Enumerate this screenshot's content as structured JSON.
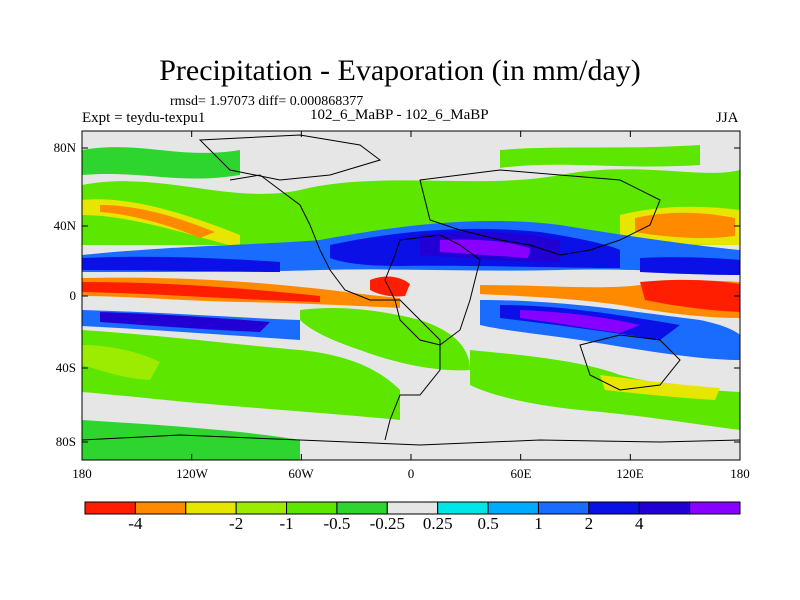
{
  "header": {
    "title": "Precipitation - Evaporation (in mm/day)",
    "stats": "rmsd= 1.97073 diff= 0.000868377",
    "experiment": "Expt = teydu-texpu1",
    "runs": "102_6_MaBP - 102_6_MaBP",
    "season": "JJA"
  },
  "map": {
    "y_ticks": [
      "80N",
      "40N",
      "0",
      "40S",
      "80S"
    ],
    "x_ticks": [
      "180",
      "120W",
      "60W",
      "0",
      "60E",
      "120E",
      "180"
    ]
  },
  "colorbar": {
    "colors": [
      "#ff1f00",
      "#ff8a00",
      "#e6e600",
      "#9bec00",
      "#5ce600",
      "#2fd52f",
      "#e6e6e6",
      "#00e6e6",
      "#00aaff",
      "#1a6cff",
      "#0a10e6",
      "#2200d4",
      "#8800ff"
    ],
    "labels": [
      "-4",
      "-2",
      "-1",
      "-0.5",
      "-0.25",
      "0.25",
      "0.5",
      "1",
      "2",
      "4"
    ],
    "label_positions": [
      1,
      3,
      4,
      5,
      6,
      7,
      8,
      9,
      10,
      11
    ]
  },
  "colors": {
    "red": "#ff1f00",
    "orange": "#ff8a00",
    "yellow": "#e6e600",
    "yellowgreen": "#9bec00",
    "green": "#5ce600",
    "dgreen": "#2fd52f",
    "grey": "#e6e6e6",
    "cyan": "#00e6e6",
    "sky": "#00aaff",
    "blue": "#1a6cff",
    "dblue": "#0a10e6",
    "indigo": "#2200d4",
    "purple": "#8800ff"
  }
}
